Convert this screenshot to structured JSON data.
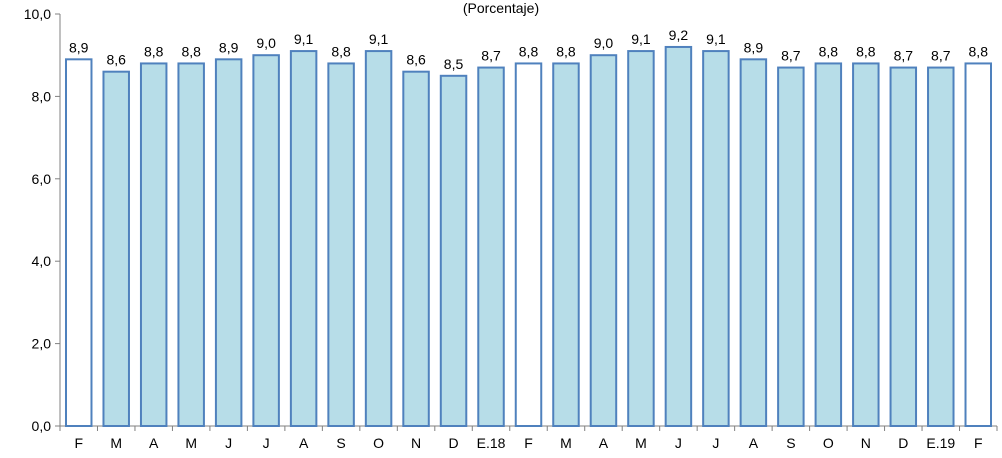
{
  "chart_data": {
    "type": "bar",
    "subtitle": "(Porcentaje)",
    "categories": [
      "F",
      "M",
      "A",
      "M",
      "J",
      "J",
      "A",
      "S",
      "O",
      "N",
      "D",
      "E.18",
      "F",
      "M",
      "A",
      "M",
      "J",
      "J",
      "A",
      "S",
      "O",
      "N",
      "D",
      "E.19",
      "F"
    ],
    "values": [
      8.9,
      8.6,
      8.8,
      8.8,
      8.9,
      9.0,
      9.1,
      8.8,
      9.1,
      8.6,
      8.5,
      8.7,
      8.8,
      8.8,
      9.0,
      9.1,
      9.2,
      9.1,
      8.9,
      8.7,
      8.8,
      8.8,
      8.7,
      8.7,
      8.8
    ],
    "value_labels": [
      "8,9",
      "8,6",
      "8,8",
      "8,8",
      "8,9",
      "9,0",
      "9,1",
      "8,8",
      "9,1",
      "8,6",
      "8,5",
      "8,7",
      "8,8",
      "8,8",
      "9,0",
      "9,1",
      "9,2",
      "9,1",
      "8,9",
      "8,7",
      "8,8",
      "8,8",
      "8,7",
      "8,7",
      "8,8"
    ],
    "highlighted": [
      true,
      false,
      false,
      false,
      false,
      false,
      false,
      false,
      false,
      false,
      false,
      false,
      true,
      false,
      false,
      false,
      false,
      false,
      false,
      false,
      false,
      false,
      false,
      false,
      true
    ],
    "ylim": [
      0,
      10
    ],
    "yticks": [
      0,
      2,
      4,
      6,
      8,
      10
    ],
    "ytick_labels": [
      "0,0",
      "2,0",
      "4,0",
      "6,0",
      "8,0",
      "10,0"
    ],
    "grid": false,
    "legend": "none",
    "colors": {
      "bar_fill": "#b7dde8",
      "bar_fill_highlight": "#ffffff",
      "bar_stroke": "#4f81bd",
      "axis": "#808080",
      "text": "#000000"
    }
  }
}
